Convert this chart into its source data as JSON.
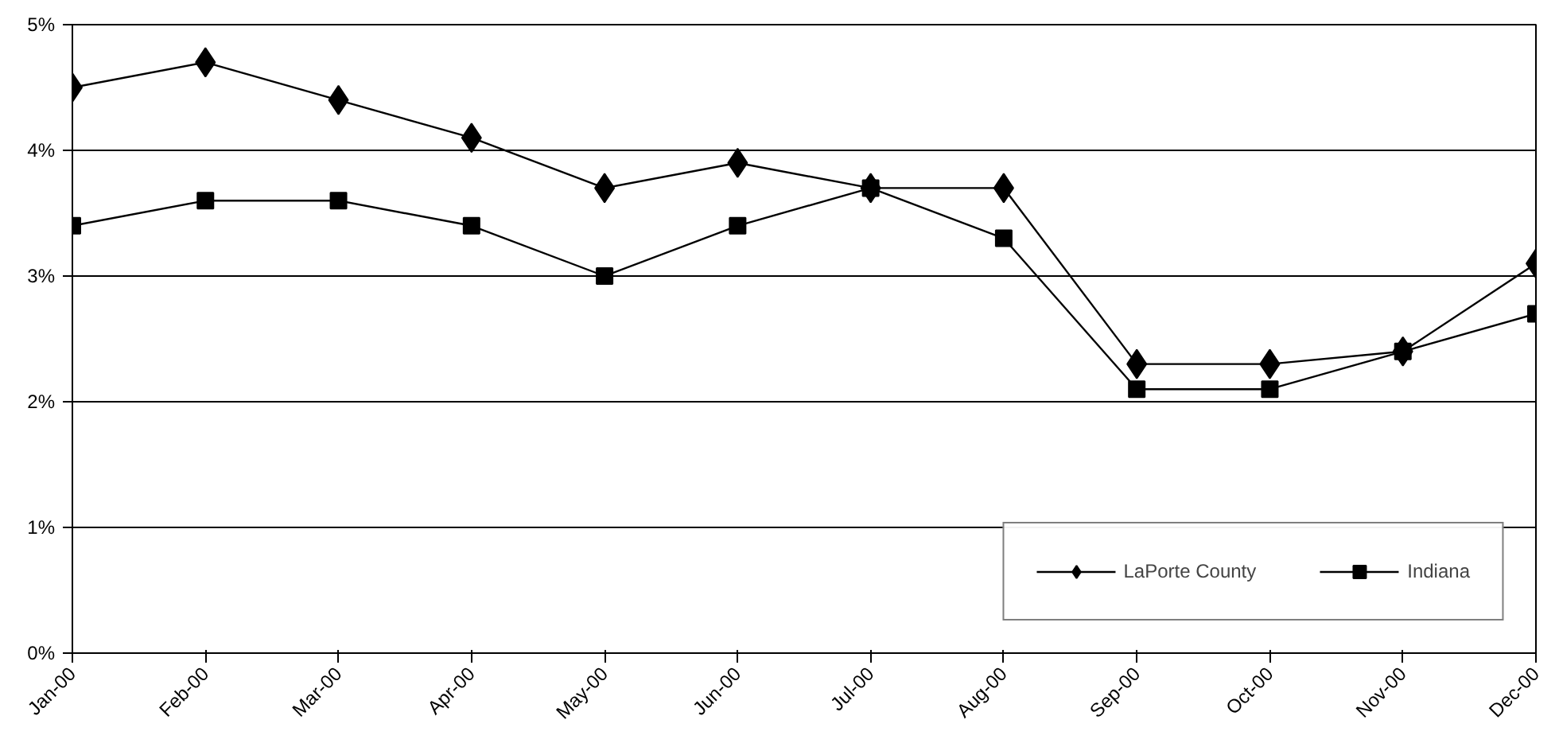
{
  "chart_data": {
    "type": "line",
    "categories": [
      "Jan-00",
      "Feb-00",
      "Mar-00",
      "Apr-00",
      "May-00",
      "Jun-00",
      "Jul-00",
      "Aug-00",
      "Sep-00",
      "Oct-00",
      "Nov-00",
      "Dec-00"
    ],
    "series": [
      {
        "name": "LaPorte County",
        "color": "#000000",
        "marker": "diamond",
        "values": [
          4.5,
          4.7,
          4.4,
          4.1,
          3.7,
          3.9,
          3.7,
          3.7,
          2.3,
          2.3,
          2.4,
          3.1
        ]
      },
      {
        "name": "Indiana",
        "color": "#000000",
        "marker": "square",
        "values": [
          3.4,
          3.6,
          3.6,
          3.4,
          3.0,
          3.4,
          3.7,
          3.3,
          2.1,
          2.1,
          2.4,
          2.7
        ]
      }
    ],
    "ylim": [
      0,
      5
    ],
    "yticks": [
      {
        "value": 0,
        "label": "0%"
      },
      {
        "value": 1,
        "label": "1%"
      },
      {
        "value": 2,
        "label": "2%"
      },
      {
        "value": 3,
        "label": "3%"
      },
      {
        "value": 4,
        "label": "4%"
      },
      {
        "value": 5,
        "label": "5%"
      }
    ],
    "grid": "y",
    "legend": "bottom right",
    "line_style": "solid"
  }
}
